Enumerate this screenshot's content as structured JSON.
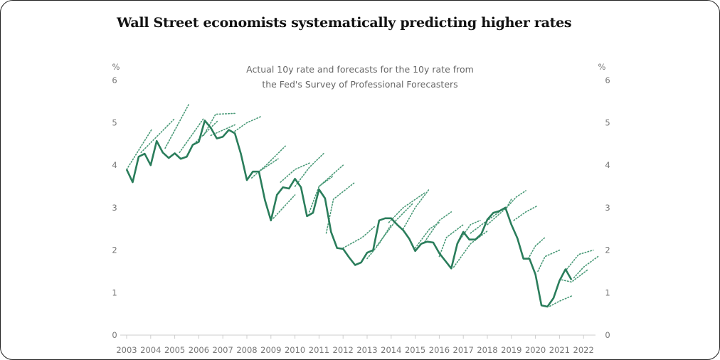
{
  "chart_data": {
    "type": "line",
    "title": "Wall Street economists systematically predicting higher rates",
    "subtitle": [
      "Actual 10y rate and forecasts for the 10y rate from",
      "the Fed's Survey of Professional Forecasters"
    ],
    "ylabel_left": "%",
    "ylabel_right": "%",
    "ylim": [
      0,
      6
    ],
    "xlim": [
      2003,
      2022.5
    ],
    "y_ticks": [
      "0",
      "1",
      "2",
      "3",
      "4",
      "5",
      "6"
    ],
    "x_ticks": [
      "2003",
      "2004",
      "2005",
      "2006",
      "2007",
      "2008",
      "2009",
      "2010",
      "2011",
      "2012",
      "2013",
      "2014",
      "2015",
      "2016",
      "2017",
      "2018",
      "2019",
      "2020",
      "2021",
      "2022"
    ],
    "grid": false,
    "colors": {
      "actual": "#2a7d5b",
      "forecast": "#4a9a78"
    },
    "series": [
      {
        "name": "Actual 10y rate",
        "x_start": 2003.0,
        "x_end": 2021.5,
        "values": [
          3.9,
          3.6,
          4.2,
          4.27,
          4.0,
          4.57,
          4.3,
          4.17,
          4.28,
          4.15,
          4.2,
          4.48,
          4.55,
          5.05,
          4.88,
          4.63,
          4.67,
          4.83,
          4.75,
          4.27,
          3.65,
          3.85,
          3.85,
          3.18,
          2.7,
          3.3,
          3.48,
          3.45,
          3.68,
          3.48,
          2.8,
          2.88,
          3.43,
          3.22,
          2.43,
          2.05,
          2.03,
          1.83,
          1.65,
          1.71,
          1.94,
          2.0,
          2.7,
          2.75,
          2.75,
          2.6,
          2.47,
          2.27,
          1.98,
          2.15,
          2.2,
          2.18,
          1.93,
          1.75,
          1.57,
          2.15,
          2.43,
          2.25,
          2.25,
          2.38,
          2.72,
          2.88,
          2.92,
          3.0,
          2.6,
          2.28,
          1.8,
          1.8,
          1.43,
          0.7,
          0.67,
          0.87,
          1.28,
          1.55,
          1.3
        ]
      },
      {
        "name": "SPF forecasts",
        "paths": [
          [
            [
              2003.0,
              3.9
            ],
            [
              2004.05,
              4.85
            ]
          ],
          [
            [
              2003.6,
              4.3
            ],
            [
              2005.0,
              5.1
            ]
          ],
          [
            [
              2004.6,
              4.4
            ],
            [
              2005.6,
              5.45
            ]
          ],
          [
            [
              2005.2,
              4.3
            ],
            [
              2006.2,
              5.1
            ]
          ],
          [
            [
              2005.8,
              4.5
            ],
            [
              2006.8,
              5.05
            ]
          ],
          [
            [
              2006.2,
              4.7
            ],
            [
              2006.7,
              5.2
            ],
            [
              2007.5,
              5.22
            ]
          ],
          [
            [
              2006.5,
              4.7
            ],
            [
              2007.5,
              4.95
            ]
          ],
          [
            [
              2007.5,
              4.8
            ],
            [
              2008.0,
              5.0
            ],
            [
              2008.6,
              5.15
            ]
          ],
          [
            [
              2008.2,
              3.7
            ],
            [
              2008.8,
              4.0
            ],
            [
              2009.6,
              4.45
            ]
          ],
          [
            [
              2008.5,
              3.85
            ],
            [
              2009.3,
              4.15
            ]
          ],
          [
            [
              2009.1,
              2.75
            ],
            [
              2010.0,
              3.3
            ]
          ],
          [
            [
              2009.4,
              3.6
            ],
            [
              2010.0,
              3.9
            ],
            [
              2010.6,
              4.05
            ]
          ],
          [
            [
              2010.0,
              3.5
            ],
            [
              2010.6,
              3.95
            ],
            [
              2011.2,
              4.28
            ]
          ],
          [
            [
              2010.6,
              2.9
            ],
            [
              2011.0,
              3.5
            ],
            [
              2011.6,
              3.75
            ]
          ],
          [
            [
              2011.0,
              3.5
            ],
            [
              2011.6,
              3.8
            ],
            [
              2012.0,
              4.0
            ]
          ],
          [
            [
              2011.3,
              2.4
            ],
            [
              2011.6,
              3.2
            ],
            [
              2012.5,
              3.6
            ]
          ],
          [
            [
              2012.0,
              2.05
            ],
            [
              2012.8,
              2.3
            ],
            [
              2013.3,
              2.55
            ]
          ],
          [
            [
              2013.0,
              1.8
            ],
            [
              2013.5,
              2.15
            ],
            [
              2014.0,
              2.6
            ]
          ],
          [
            [
              2013.4,
              2.1
            ],
            [
              2014.2,
              2.7
            ],
            [
              2014.9,
              3.1
            ]
          ],
          [
            [
              2013.9,
              2.65
            ],
            [
              2014.5,
              3.0
            ],
            [
              2015.4,
              3.35
            ]
          ],
          [
            [
              2014.5,
              2.5
            ],
            [
              2015.0,
              3.0
            ],
            [
              2015.6,
              3.45
            ]
          ],
          [
            [
              2015.0,
              2.05
            ],
            [
              2015.6,
              2.5
            ],
            [
              2016.0,
              2.65
            ]
          ],
          [
            [
              2015.4,
              2.2
            ],
            [
              2016.0,
              2.7
            ],
            [
              2016.5,
              2.9
            ]
          ],
          [
            [
              2016.0,
              1.85
            ],
            [
              2016.3,
              2.3
            ],
            [
              2017.0,
              2.6
            ]
          ],
          [
            [
              2016.6,
              1.6
            ],
            [
              2017.3,
              2.15
            ],
            [
              2018.0,
              2.45
            ]
          ],
          [
            [
              2016.8,
              2.2
            ],
            [
              2017.3,
              2.6
            ],
            [
              2017.7,
              2.7
            ]
          ],
          [
            [
              2017.3,
              2.4
            ],
            [
              2018.0,
              2.7
            ],
            [
              2018.5,
              2.9
            ]
          ],
          [
            [
              2018.0,
              2.6
            ],
            [
              2018.8,
              3.0
            ],
            [
              2019.0,
              3.2
            ]
          ],
          [
            [
              2018.8,
              3.0
            ],
            [
              2019.2,
              3.25
            ],
            [
              2019.6,
              3.4
            ]
          ],
          [
            [
              2019.1,
              2.7
            ],
            [
              2019.6,
              2.9
            ],
            [
              2020.1,
              3.05
            ]
          ],
          [
            [
              2019.7,
              1.8
            ],
            [
              2020.0,
              2.1
            ],
            [
              2020.4,
              2.3
            ]
          ],
          [
            [
              2020.1,
              1.5
            ],
            [
              2020.4,
              1.85
            ],
            [
              2021.0,
              2.0
            ]
          ],
          [
            [
              2020.6,
              0.68
            ],
            [
              2021.0,
              0.8
            ],
            [
              2021.5,
              0.92
            ]
          ],
          [
            [
              2021.1,
              1.3
            ],
            [
              2021.5,
              1.25
            ],
            [
              2022.2,
              1.55
            ]
          ],
          [
            [
              2021.3,
              1.55
            ],
            [
              2021.8,
              1.9
            ],
            [
              2022.4,
              2.0
            ]
          ],
          [
            [
              2021.6,
              1.35
            ],
            [
              2022.0,
              1.6
            ],
            [
              2022.6,
              1.85
            ]
          ]
        ]
      }
    ]
  }
}
